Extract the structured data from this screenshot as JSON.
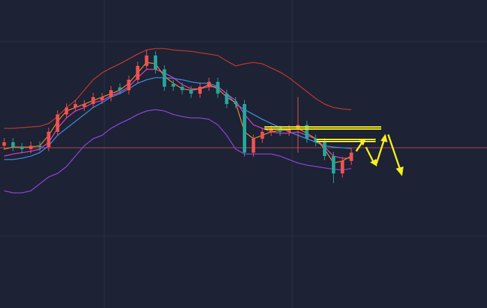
{
  "chart_data": {
    "type": "candlestick",
    "ylim": [
      0,
      444
    ],
    "up_color": "#ef5350",
    "down_color": "#26a69a",
    "open": [
      234,
      239,
      232,
      229,
      234,
      232,
      254,
      279,
      289,
      290,
      294,
      300,
      304,
      318,
      314,
      329,
      349,
      364,
      344,
      323,
      319,
      314,
      309,
      319,
      326,
      309,
      298,
      294,
      224,
      244,
      254,
      257,
      254,
      258,
      264,
      244,
      239,
      219,
      194,
      212
    ],
    "high": [
      245,
      245,
      238,
      240,
      240,
      260,
      285,
      295,
      300,
      300,
      310,
      310,
      320,
      324,
      335,
      355,
      372,
      370,
      350,
      329,
      325,
      320,
      325,
      332,
      332,
      315,
      304,
      300,
      250,
      260,
      263,
      263,
      264,
      304,
      270,
      250,
      245,
      225,
      218,
      230
    ],
    "low": [
      228,
      226,
      223,
      223,
      226,
      226,
      248,
      273,
      283,
      284,
      288,
      294,
      298,
      308,
      308,
      323,
      343,
      338,
      313,
      313,
      308,
      303,
      303,
      313,
      303,
      288,
      288,
      218,
      218,
      238,
      248,
      248,
      248,
      224,
      238,
      233,
      213,
      180,
      188,
      206
    ],
    "close": [
      239,
      232,
      229,
      234,
      232,
      254,
      279,
      289,
      294,
      294,
      304,
      304,
      314,
      314,
      329,
      349,
      364,
      344,
      319,
      319,
      314,
      309,
      319,
      326,
      309,
      294,
      294,
      224,
      244,
      254,
      257,
      254,
      258,
      264,
      244,
      239,
      219,
      194,
      212,
      224
    ],
    "series": [
      {
        "color": "#c0392b",
        "values": [
          259,
          259,
          260,
          261,
          262,
          266,
          276,
          289,
          299,
          314,
          329,
          339,
          346,
          352,
          359,
          366,
          372,
          374,
          374,
          372,
          371,
          370,
          368,
          366,
          364,
          356,
          349,
          352,
          354,
          352,
          346,
          340,
          332,
          322,
          312,
          302,
          294,
          289,
          287,
          286
        ]
      },
      {
        "color": "#8e44d8",
        "values": [
          169,
          166,
          166,
          169,
          179,
          189,
          194,
          204,
          219,
          234,
          244,
          249,
          259,
          266,
          272,
          279,
          284,
          286,
          284,
          279,
          276,
          274,
          274,
          272,
          264,
          249,
          229,
          222,
          222,
          222,
          222,
          219,
          214,
          209,
          206,
          204,
          202,
          200,
          199,
          201
        ]
      },
      {
        "color": "#3d8fe0",
        "values": [
          214,
          214,
          216,
          219,
          224,
          234,
          249,
          259,
          269,
          279,
          289,
          296,
          304,
          309,
          316,
          324,
          329,
          332,
          332,
          331,
          329,
          326,
          324,
          324,
          319,
          309,
          294,
          286,
          279,
          272,
          266,
          260,
          254,
          249,
          244,
          239,
          234,
          232,
          231,
          230
        ]
      },
      {
        "color": "#d63fc4",
        "values": [
          219,
          222,
          224,
          226,
          229,
          239,
          259,
          274,
          284,
          289,
          296,
          299,
          306,
          311,
          319,
          332,
          344,
          344,
          339,
          332,
          322,
          316,
          316,
          319,
          319,
          309,
          299,
          279,
          264,
          259,
          254,
          252,
          252,
          254,
          249,
          244,
          232,
          219,
          216,
          216
        ]
      },
      {
        "color": "#e08a2a",
        "values": [
          229,
          232,
          232,
          232,
          234,
          249,
          269,
          284,
          289,
          294,
          299,
          304,
          309,
          314,
          324,
          339,
          354,
          352,
          334,
          324,
          316,
          314,
          316,
          322,
          316,
          304,
          296,
          254,
          244,
          249,
          254,
          256,
          257,
          259,
          252,
          244,
          229,
          209,
          212,
          219
        ]
      }
    ],
    "price_line": 231
  }
}
